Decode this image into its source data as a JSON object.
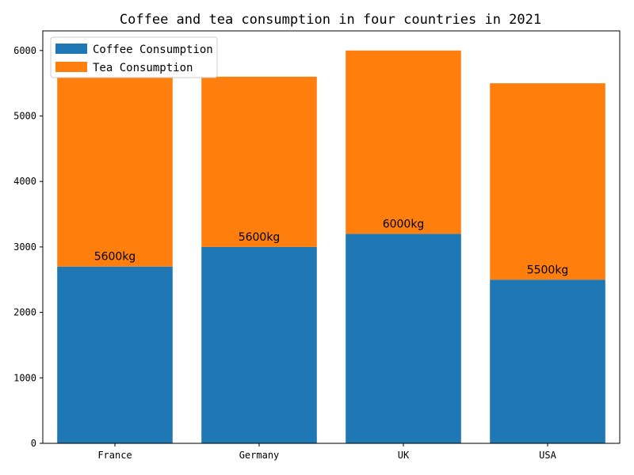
{
  "chart_data": {
    "type": "bar",
    "stacked": true,
    "title": "Coffee and tea consumption in four countries in 2021",
    "xlabel": "",
    "ylabel": "",
    "categories": [
      "France",
      "Germany",
      "UK",
      "USA"
    ],
    "series": [
      {
        "name": "Coffee Consumption",
        "values": [
          2700,
          3000,
          3200,
          2500
        ],
        "color": "#1f77b4"
      },
      {
        "name": "Tea Consumption",
        "values": [
          2900,
          2600,
          2800,
          3000
        ],
        "color": "#ff7f0e"
      }
    ],
    "data_labels": [
      "5600kg",
      "5600kg",
      "6000kg",
      "5500kg"
    ],
    "ylim": [
      0,
      6300
    ],
    "yticks": [
      "0",
      "1000",
      "2000",
      "3000",
      "4000",
      "5000",
      "6000"
    ],
    "grid": false,
    "legend_position": "top-left"
  }
}
